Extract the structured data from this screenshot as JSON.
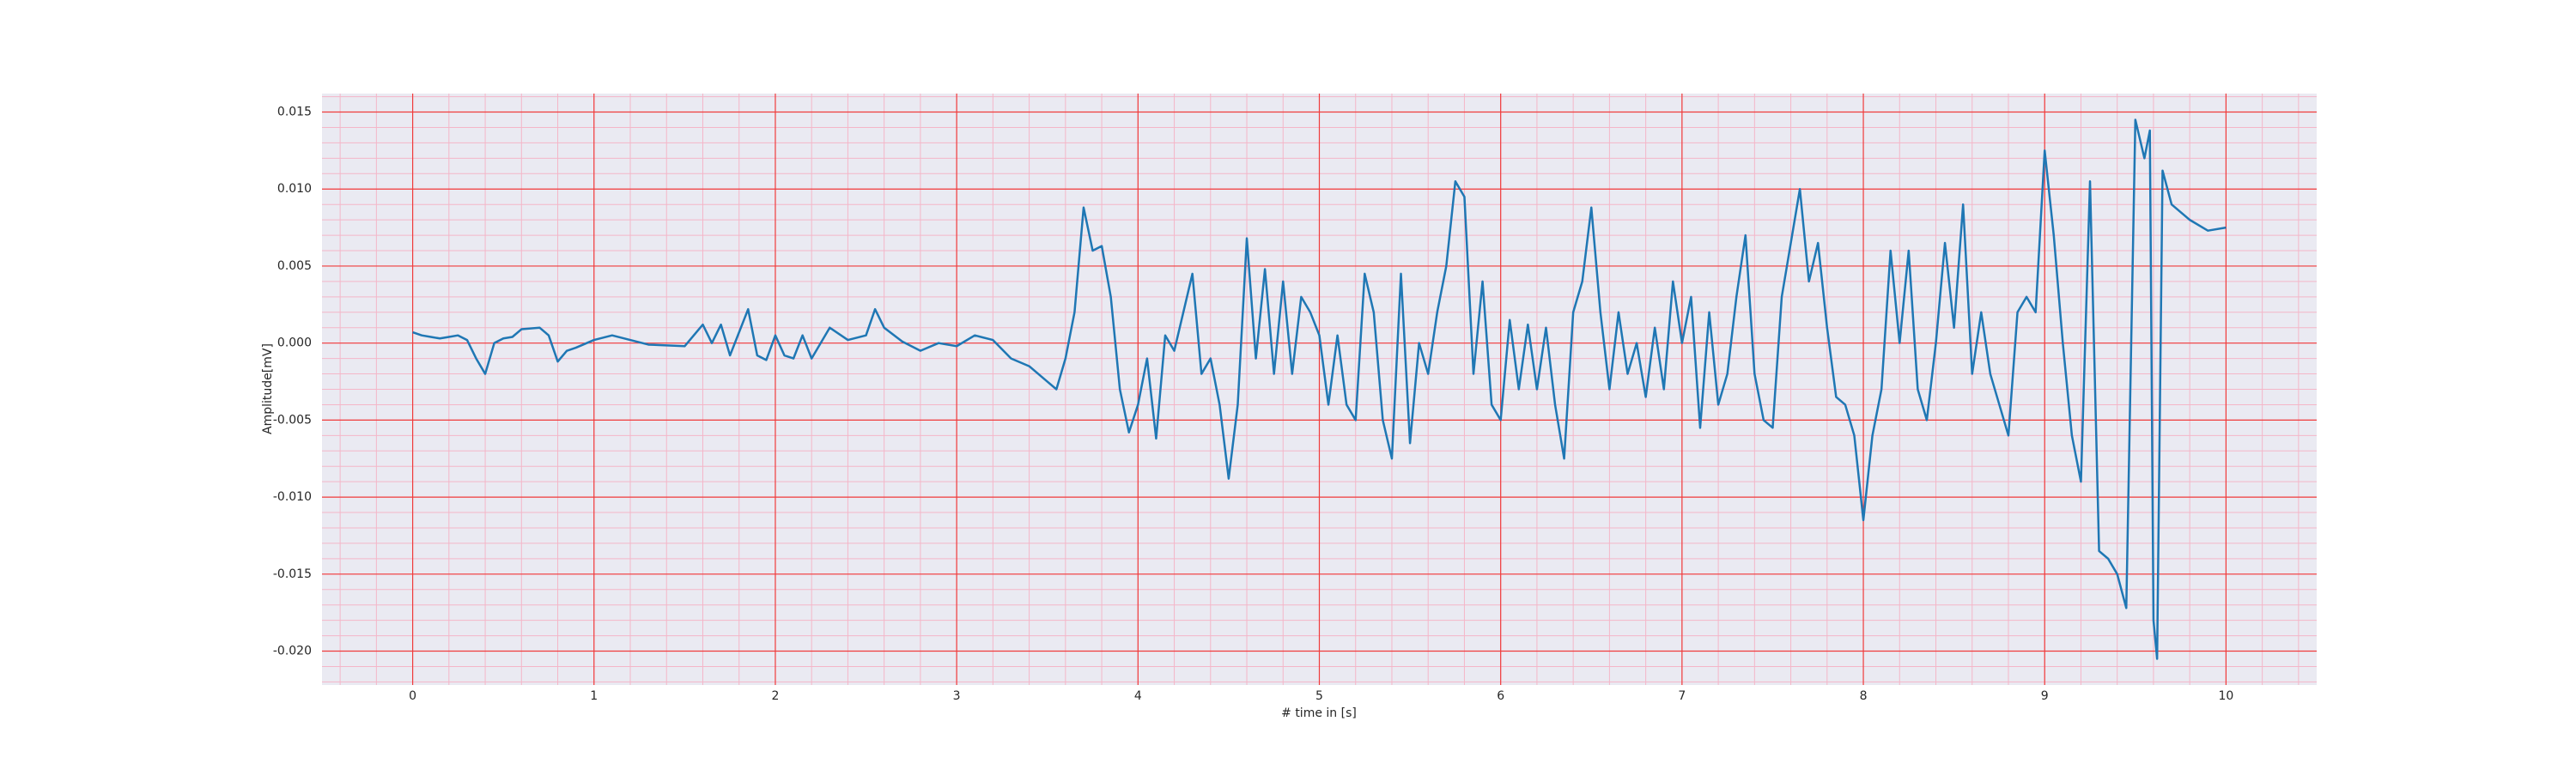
{
  "chart_data": {
    "type": "line",
    "x_label": "# time in [s]",
    "y_label": "Amplitude[mV]",
    "x": [
      0,
      0.05,
      0.1,
      0.15,
      0.2,
      0.25,
      0.3,
      0.35,
      0.4,
      0.45,
      0.5,
      0.55,
      0.6,
      0.7,
      0.75,
      0.8,
      0.85,
      0.9,
      1.0,
      1.1,
      1.2,
      1.3,
      1.5,
      1.6,
      1.65,
      1.7,
      1.75,
      1.8,
      1.85,
      1.9,
      1.95,
      2.0,
      2.05,
      2.1,
      2.15,
      2.2,
      2.3,
      2.4,
      2.5,
      2.55,
      2.6,
      2.7,
      2.8,
      2.9,
      3.0,
      3.1,
      3.2,
      3.3,
      3.4,
      3.5,
      3.55,
      3.6,
      3.65,
      3.7,
      3.75,
      3.8,
      3.85,
      3.9,
      3.95,
      4.0,
      4.05,
      4.1,
      4.15,
      4.2,
      4.25,
      4.3,
      4.35,
      4.4,
      4.45,
      4.5,
      4.55,
      4.6,
      4.65,
      4.7,
      4.75,
      4.8,
      4.85,
      4.9,
      4.95,
      5.0,
      5.05,
      5.1,
      5.15,
      5.2,
      5.25,
      5.3,
      5.35,
      5.4,
      5.45,
      5.5,
      5.55,
      5.6,
      5.65,
      5.7,
      5.75,
      5.8,
      5.85,
      5.9,
      5.95,
      6.0,
      6.05,
      6.1,
      6.15,
      6.2,
      6.25,
      6.3,
      6.35,
      6.4,
      6.45,
      6.5,
      6.55,
      6.6,
      6.65,
      6.7,
      6.75,
      6.8,
      6.85,
      6.9,
      6.95,
      7.0,
      7.05,
      7.1,
      7.15,
      7.2,
      7.25,
      7.3,
      7.35,
      7.4,
      7.45,
      7.5,
      7.55,
      7.6,
      7.65,
      7.7,
      7.75,
      7.8,
      7.85,
      7.9,
      7.95,
      8.0,
      8.05,
      8.1,
      8.15,
      8.2,
      8.25,
      8.3,
      8.35,
      8.4,
      8.45,
      8.5,
      8.55,
      8.6,
      8.65,
      8.7,
      8.75,
      8.8,
      8.85,
      8.9,
      8.95,
      9.0,
      9.05,
      9.1,
      9.15,
      9.2,
      9.25,
      9.3,
      9.35,
      9.4,
      9.45,
      9.5,
      9.55,
      9.58,
      9.6,
      9.62,
      9.65,
      9.7,
      9.8,
      9.9,
      10.0
    ],
    "values": [
      0.0007,
      0.0005,
      0.0004,
      0.0003,
      0.0004,
      0.0005,
      0.0002,
      -0.001,
      -0.002,
      0.0,
      0.0003,
      0.0004,
      0.0009,
      0.001,
      0.0005,
      -0.0012,
      -0.0005,
      -0.0003,
      0.0002,
      0.0005,
      0.0002,
      -0.0001,
      -0.0002,
      0.0012,
      0.0,
      0.0012,
      -0.0008,
      0.0007,
      0.0022,
      -0.0008,
      -0.0011,
      0.0005,
      -0.0008,
      -0.001,
      0.0005,
      -0.001,
      0.001,
      0.0002,
      0.0005,
      0.0022,
      0.001,
      0.0001,
      -0.0005,
      0.0,
      -0.0002,
      0.0005,
      0.0002,
      -0.001,
      -0.0015,
      -0.0025,
      -0.003,
      -0.001,
      0.002,
      0.0088,
      0.006,
      0.0063,
      0.003,
      -0.003,
      -0.0058,
      -0.004,
      -0.001,
      -0.0062,
      0.0005,
      -0.0005,
      0.002,
      0.0045,
      -0.002,
      -0.001,
      -0.004,
      -0.0088,
      -0.004,
      0.0068,
      -0.001,
      0.0048,
      -0.002,
      0.004,
      -0.002,
      0.003,
      0.002,
      0.0005,
      -0.004,
      0.0005,
      -0.004,
      -0.005,
      0.0045,
      0.002,
      -0.005,
      -0.0075,
      0.0045,
      -0.0065,
      0.0,
      -0.002,
      0.002,
      0.005,
      0.0105,
      0.0095,
      -0.002,
      0.004,
      -0.004,
      -0.005,
      0.0015,
      -0.003,
      0.0012,
      -0.003,
      0.001,
      -0.004,
      -0.0075,
      0.002,
      0.004,
      0.0088,
      0.002,
      -0.003,
      0.002,
      -0.002,
      0.0,
      -0.0035,
      0.001,
      -0.003,
      0.004,
      0.0,
      0.003,
      -0.0055,
      0.002,
      -0.004,
      -0.002,
      0.003,
      0.007,
      -0.002,
      -0.005,
      -0.0055,
      0.003,
      0.0065,
      0.01,
      0.004,
      0.0065,
      0.001,
      -0.0035,
      -0.004,
      -0.006,
      -0.0115,
      -0.006,
      -0.003,
      0.006,
      0.0,
      0.006,
      -0.003,
      -0.005,
      0.0,
      0.0065,
      0.001,
      0.009,
      -0.002,
      0.002,
      -0.002,
      -0.004,
      -0.006,
      0.002,
      0.003,
      0.002,
      0.0125,
      0.007,
      0.0,
      -0.006,
      -0.009,
      0.0105,
      -0.0135,
      -0.014,
      -0.015,
      -0.0172,
      0.0145,
      0.012,
      0.0138,
      -0.018,
      -0.0205,
      0.0112,
      0.009,
      0.008,
      0.0073,
      0.0075
    ],
    "color": "#1f77b4",
    "xlim": [
      -0.5,
      10.5
    ],
    "xticks": [
      0,
      1,
      2,
      3,
      4,
      5,
      6,
      7,
      8,
      9,
      10
    ],
    "ylim": [
      -0.0222,
      0.0162
    ],
    "yticks": [
      {
        "value": -0.02,
        "label": "-0.020"
      },
      {
        "value": -0.015,
        "label": "-0.015"
      },
      {
        "value": -0.01,
        "label": "-0.010"
      },
      {
        "value": -0.005,
        "label": "-0.005"
      },
      {
        "value": 0,
        "label": "0.000"
      },
      {
        "value": 0.005,
        "label": "0.005"
      },
      {
        "value": 0.01,
        "label": "0.010"
      },
      {
        "value": 0.015,
        "label": "0.015"
      }
    ],
    "grid": true,
    "minor_grid": true
  }
}
